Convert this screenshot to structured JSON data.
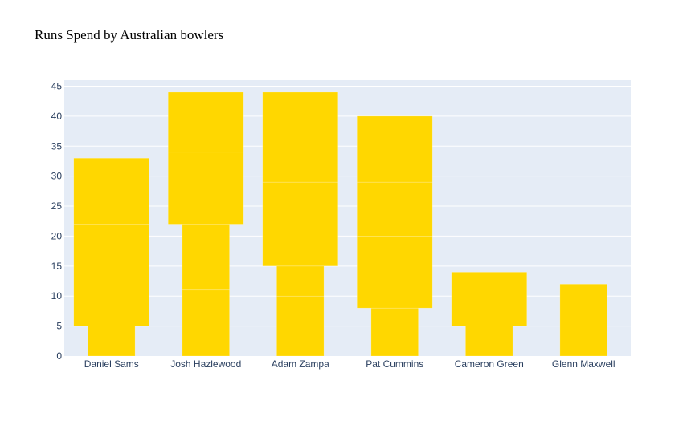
{
  "chart_data": {
    "type": "bar",
    "title": "Runs Spend by Australian bowlers",
    "xlabel": "",
    "ylabel": "",
    "categories": [
      "Daniel Sams",
      "Josh Hazlewood",
      "Adam Zampa",
      "Pat Cummins",
      "Cameron Green",
      "Glenn Maxwell"
    ],
    "ylim": [
      0,
      46
    ],
    "yticks": [
      0,
      5,
      10,
      15,
      20,
      25,
      30,
      35,
      40,
      45
    ],
    "grid": true,
    "colors": {
      "bar": "#FFD700",
      "plot_bg": "#E5ECF6",
      "grid": "#ffffff",
      "tick_text": "#2a3f5f"
    },
    "segments": [
      {
        "category": "Daniel Sams",
        "base": 0,
        "value": 5,
        "width": 0.5
      },
      {
        "category": "Daniel Sams",
        "base": 5,
        "value": 17,
        "width": 0.8
      },
      {
        "category": "Daniel Sams",
        "base": 22,
        "value": 11,
        "width": 0.8
      },
      {
        "category": "Josh Hazlewood",
        "base": 0,
        "value": 11,
        "width": 0.5
      },
      {
        "category": "Josh Hazlewood",
        "base": 11,
        "value": 11,
        "width": 0.5
      },
      {
        "category": "Josh Hazlewood",
        "base": 22,
        "value": 12,
        "width": 0.8
      },
      {
        "category": "Josh Hazlewood",
        "base": 34,
        "value": 10,
        "width": 0.8
      },
      {
        "category": "Adam Zampa",
        "base": 0,
        "value": 10,
        "width": 0.5
      },
      {
        "category": "Adam Zampa",
        "base": 10,
        "value": 5,
        "width": 0.5
      },
      {
        "category": "Adam Zampa",
        "base": 15,
        "value": 14,
        "width": 0.8
      },
      {
        "category": "Adam Zampa",
        "base": 29,
        "value": 15,
        "width": 0.8
      },
      {
        "category": "Pat Cummins",
        "base": 0,
        "value": 8,
        "width": 0.5
      },
      {
        "category": "Pat Cummins",
        "base": 8,
        "value": 12,
        "width": 0.8
      },
      {
        "category": "Pat Cummins",
        "base": 20,
        "value": 9,
        "width": 0.8
      },
      {
        "category": "Pat Cummins",
        "base": 29,
        "value": 11,
        "width": 0.8
      },
      {
        "category": "Cameron Green",
        "base": 0,
        "value": 5,
        "width": 0.5
      },
      {
        "category": "Cameron Green",
        "base": 5,
        "value": 4,
        "width": 0.8
      },
      {
        "category": "Cameron Green",
        "base": 9,
        "value": 5,
        "width": 0.8
      },
      {
        "category": "Glenn Maxwell",
        "base": 0,
        "value": 12,
        "width": 0.5
      }
    ]
  }
}
